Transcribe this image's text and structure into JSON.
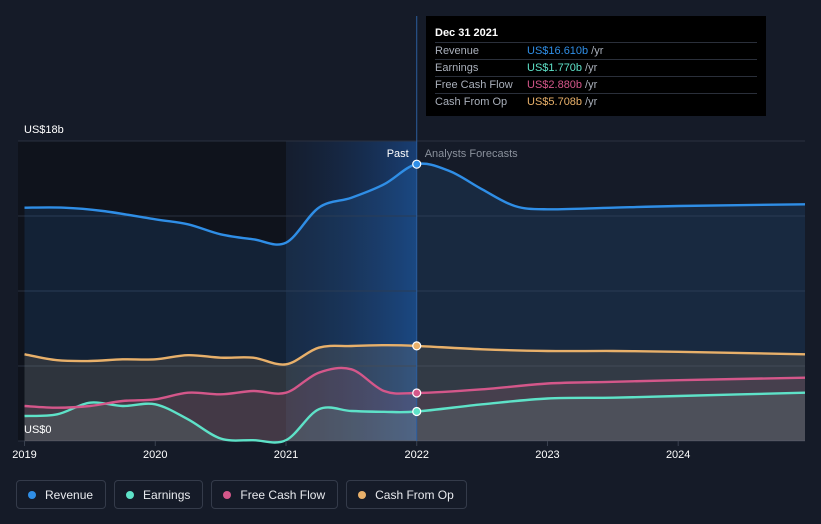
{
  "chart_data": {
    "type": "area",
    "y_top_label": "US$18b",
    "y_bottom_label": "US$0",
    "ylim": [
      0,
      18
    ],
    "xlim": [
      2018.95,
      2024.97
    ],
    "x_ticks": [
      {
        "value": 2019,
        "label": "2019"
      },
      {
        "value": 2020,
        "label": "2020"
      },
      {
        "value": 2021,
        "label": "2021"
      },
      {
        "value": 2022,
        "label": "2022"
      },
      {
        "value": 2023,
        "label": "2023"
      },
      {
        "value": 2024,
        "label": "2024"
      }
    ],
    "divider_x": 2022.0,
    "highlight_start_x": 2021.0,
    "past_label": "Past",
    "forecast_label": "Analysts Forecasts",
    "series": [
      {
        "name": "Revenue",
        "color": "#2f8ee6",
        "points": [
          [
            2019.0,
            14.0
          ],
          [
            2019.3,
            14.0
          ],
          [
            2019.6,
            13.8
          ],
          [
            2020.0,
            13.3
          ],
          [
            2020.25,
            13.0
          ],
          [
            2020.5,
            12.4
          ],
          [
            2020.75,
            12.1
          ],
          [
            2021.0,
            11.9
          ],
          [
            2021.25,
            14.0
          ],
          [
            2021.5,
            14.6
          ],
          [
            2021.75,
            15.4
          ],
          [
            2022.0,
            16.61
          ],
          [
            2022.25,
            16.2
          ],
          [
            2022.5,
            15.1
          ],
          [
            2022.75,
            14.1
          ],
          [
            2023.0,
            13.9
          ],
          [
            2023.5,
            14.0
          ],
          [
            2024.0,
            14.1
          ],
          [
            2024.97,
            14.2
          ]
        ]
      },
      {
        "name": "Earnings",
        "color": "#5ee2c8",
        "points": [
          [
            2019.0,
            1.5
          ],
          [
            2019.25,
            1.6
          ],
          [
            2019.5,
            2.3
          ],
          [
            2019.75,
            2.1
          ],
          [
            2020.0,
            2.2
          ],
          [
            2020.25,
            1.3
          ],
          [
            2020.5,
            0.15
          ],
          [
            2020.75,
            0.05
          ],
          [
            2021.0,
            0.05
          ],
          [
            2021.25,
            1.9
          ],
          [
            2021.5,
            1.8
          ],
          [
            2021.75,
            1.75
          ],
          [
            2022.0,
            1.77
          ],
          [
            2022.5,
            2.2
          ],
          [
            2023.0,
            2.55
          ],
          [
            2023.5,
            2.6
          ],
          [
            2024.0,
            2.7
          ],
          [
            2024.97,
            2.9
          ]
        ]
      },
      {
        "name": "Free Cash Flow",
        "color": "#d4578a",
        "points": [
          [
            2019.0,
            2.1
          ],
          [
            2019.25,
            2.0
          ],
          [
            2019.5,
            2.1
          ],
          [
            2019.75,
            2.4
          ],
          [
            2020.0,
            2.5
          ],
          [
            2020.25,
            2.9
          ],
          [
            2020.5,
            2.8
          ],
          [
            2020.75,
            3.0
          ],
          [
            2021.0,
            2.9
          ],
          [
            2021.25,
            4.1
          ],
          [
            2021.5,
            4.3
          ],
          [
            2021.75,
            3.0
          ],
          [
            2022.0,
            2.88
          ],
          [
            2022.5,
            3.1
          ],
          [
            2023.0,
            3.45
          ],
          [
            2023.5,
            3.55
          ],
          [
            2024.0,
            3.65
          ],
          [
            2024.97,
            3.8
          ]
        ]
      },
      {
        "name": "Cash From Op",
        "color": "#e8b06a",
        "points": [
          [
            2019.0,
            5.2
          ],
          [
            2019.25,
            4.85
          ],
          [
            2019.5,
            4.8
          ],
          [
            2019.75,
            4.9
          ],
          [
            2020.0,
            4.9
          ],
          [
            2020.25,
            5.15
          ],
          [
            2020.5,
            5.0
          ],
          [
            2020.75,
            5.0
          ],
          [
            2021.0,
            4.6
          ],
          [
            2021.25,
            5.6
          ],
          [
            2021.5,
            5.7
          ],
          [
            2021.75,
            5.75
          ],
          [
            2022.0,
            5.708
          ],
          [
            2022.5,
            5.5
          ],
          [
            2023.0,
            5.4
          ],
          [
            2023.5,
            5.4
          ],
          [
            2024.0,
            5.35
          ],
          [
            2024.97,
            5.2
          ]
        ]
      }
    ]
  },
  "tooltip": {
    "date": "Dec 31 2021",
    "rows": [
      {
        "label": "Revenue",
        "value": "US$16.610b",
        "unit": "/yr",
        "color": "#2f8ee6"
      },
      {
        "label": "Earnings",
        "value": "US$1.770b",
        "unit": "/yr",
        "color": "#5ee2c8"
      },
      {
        "label": "Free Cash Flow",
        "value": "US$2.880b",
        "unit": "/yr",
        "color": "#d4578a"
      },
      {
        "label": "Cash From Op",
        "value": "US$5.708b",
        "unit": "/yr",
        "color": "#e8b06a"
      }
    ]
  },
  "legend": [
    {
      "label": "Revenue",
      "color": "#2f8ee6"
    },
    {
      "label": "Earnings",
      "color": "#5ee2c8"
    },
    {
      "label": "Free Cash Flow",
      "color": "#d4578a"
    },
    {
      "label": "Cash From Op",
      "color": "#e8b06a"
    }
  ]
}
